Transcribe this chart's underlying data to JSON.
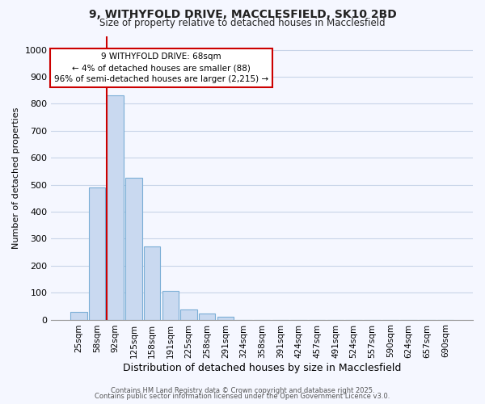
{
  "title_line1": "9, WITHYFOLD DRIVE, MACCLESFIELD, SK10 2BD",
  "title_line2": "Size of property relative to detached houses in Macclesfield",
  "xlabel": "Distribution of detached houses by size in Macclesfield",
  "ylabel": "Number of detached properties",
  "bar_labels": [
    "25sqm",
    "58sqm",
    "92sqm",
    "125sqm",
    "158sqm",
    "191sqm",
    "225sqm",
    "258sqm",
    "291sqm",
    "324sqm",
    "358sqm",
    "391sqm",
    "424sqm",
    "457sqm",
    "491sqm",
    "524sqm",
    "557sqm",
    "590sqm",
    "624sqm",
    "657sqm",
    "690sqm"
  ],
  "bar_values": [
    30,
    490,
    830,
    525,
    270,
    107,
    38,
    22,
    10,
    0,
    0,
    0,
    0,
    0,
    0,
    0,
    0,
    0,
    0,
    0,
    0
  ],
  "bar_color": "#c9d9f0",
  "bar_edgecolor": "#7aaed6",
  "vline_color": "#cc0000",
  "annotation_text": "9 WITHYFOLD DRIVE: 68sqm\n← 4% of detached houses are smaller (88)\n96% of semi-detached houses are larger (2,215) →",
  "annotation_box_facecolor": "#ffffff",
  "annotation_box_edgecolor": "#cc0000",
  "ylim": [
    0,
    1050
  ],
  "yticks": [
    0,
    100,
    200,
    300,
    400,
    500,
    600,
    700,
    800,
    900,
    1000
  ],
  "background_color": "#f5f7ff",
  "grid_color": "#c8d4e8",
  "footer_line1": "Contains HM Land Registry data © Crown copyright and database right 2025.",
  "footer_line2": "Contains public sector information licensed under the Open Government Licence v3.0."
}
